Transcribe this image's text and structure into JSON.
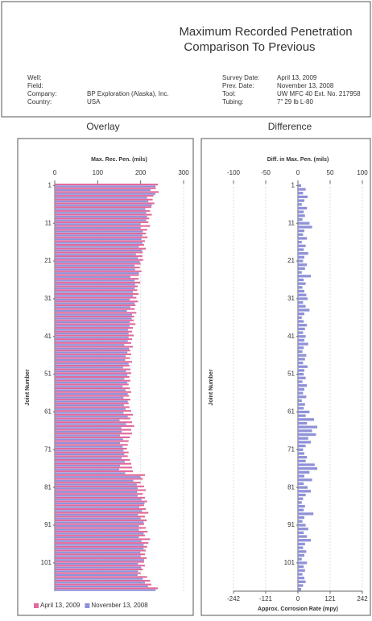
{
  "header": {
    "title": "Maximum Recorded Penetration",
    "subtitle": "Comparison To Previous",
    "fields_left": [
      [
        "Well:",
        ""
      ],
      [
        "Field:",
        ""
      ],
      [
        "Company:",
        "BP Exploration (Alaska), Inc."
      ],
      [
        "Country:",
        "USA"
      ]
    ],
    "fields_right": [
      [
        "Survey Date:",
        "April 13, 2009"
      ],
      [
        "Prev. Date:",
        "November 13, 2008"
      ],
      [
        "Tool:",
        "UW MFC 40 Ext. No. 217958"
      ],
      [
        "Tubing:",
        "7”  29 lb  L-80"
      ]
    ]
  },
  "chart_data": [
    {
      "type": "bar",
      "title": "Overlay",
      "x_label": "Max. Rec. Pen. (mils)",
      "y_label": "Joint Number",
      "xlim": [
        0,
        300
      ],
      "xticks": [
        0,
        100,
        200,
        300
      ],
      "grid": true,
      "legend": "bottom",
      "categories": [
        "1",
        null,
        null,
        null,
        null,
        null,
        null,
        null,
        null,
        null,
        "11",
        null,
        null,
        null,
        null,
        null,
        null,
        null,
        null,
        null,
        "21",
        null,
        null,
        null,
        null,
        null,
        null,
        null,
        null,
        null,
        "31",
        null,
        null,
        null,
        null,
        null,
        null,
        null,
        null,
        null,
        "41",
        null,
        null,
        null,
        null,
        null,
        null,
        null,
        null,
        null,
        "51",
        null,
        null,
        null,
        null,
        null,
        null,
        null,
        null,
        null,
        "61",
        null,
        null,
        null,
        null,
        null,
        null,
        null,
        null,
        null,
        "71",
        null,
        null,
        null,
        null,
        null,
        null,
        null,
        null,
        null,
        "81",
        null,
        null,
        null,
        null,
        null,
        null,
        null,
        null,
        null,
        "91",
        null,
        null,
        null,
        null,
        null,
        null,
        null,
        null,
        null,
        "101",
        null,
        null,
        null,
        null,
        null,
        null,
        null
      ],
      "series": [
        {
          "name": "April 13, 2009",
          "color": "#e2699c",
          "values": [
            240,
            235,
            242,
            230,
            228,
            232,
            225,
            222,
            226,
            220,
            218,
            222,
            215,
            212,
            216,
            210,
            208,
            212,
            205,
            204,
            206,
            200,
            198,
            202,
            196,
            195,
            199,
            193,
            192,
            195,
            190,
            194,
            188,
            186,
            190,
            185,
            184,
            188,
            182,
            180,
            184,
            180,
            178,
            182,
            176,
            178,
            175,
            180,
            174,
            176,
            178,
            174,
            176,
            172,
            175,
            178,
            173,
            176,
            172,
            174,
            178,
            182,
            176,
            180,
            185,
            178,
            180,
            175,
            172,
            170,
            168,
            172,
            170,
            175,
            178,
            180,
            182,
            210,
            205,
            200,
            208,
            212,
            205,
            210,
            215,
            208,
            212,
            218,
            210,
            214,
            208,
            212,
            216,
            210,
            222,
            218,
            215,
            212,
            210,
            214,
            208,
            210,
            205,
            200,
            215,
            222,
            225,
            240
          ]
        },
        {
          "name": "November 13, 2008",
          "color": "#8f92d8",
          "values": [
            235,
            223,
            234,
            215,
            218,
            226,
            211,
            213,
            215,
            213,
            200,
            200,
            205,
            204,
            202,
            204,
            196,
            203,
            189,
            194,
            198,
            186,
            187,
            196,
            176,
            186,
            187,
            186,
            182,
            182,
            175,
            186,
            176,
            168,
            180,
            179,
            175,
            174,
            171,
            172,
            172,
            170,
            162,
            173,
            169,
            165,
            164,
            172,
            159,
            166,
            169,
            162,
            169,
            158,
            165,
            170,
            160,
            170,
            161,
            165,
            160,
            170,
            151,
            166,
            155,
            156,
            152,
            159,
            152,
            158,
            160,
            162,
            156,
            163,
            152,
            150,
            164,
            200,
            183,
            191,
            193,
            192,
            193,
            202,
            209,
            197,
            203,
            194,
            200,
            207,
            196,
            196,
            207,
            196,
            202,
            207,
            207,
            199,
            200,
            208,
            194,
            201,
            194,
            193,
            205,
            210,
            217,
            235
          ]
        }
      ]
    },
    {
      "type": "diverging-bar",
      "title": "Difference",
      "x_label": "Diff. in Max. Pen. (mils)",
      "y_label": "Joint Number",
      "x2_label": "Approx. Corrosion Rate (mpy)",
      "xlim": [
        -100,
        100
      ],
      "xticks": [
        -100,
        -50,
        0,
        50,
        100
      ],
      "x2lim": [
        -242,
        242
      ],
      "x2ticks": [
        -242,
        -121,
        0,
        121,
        242
      ],
      "grid": true,
      "categories": [
        "1",
        null,
        null,
        null,
        null,
        null,
        null,
        null,
        null,
        null,
        "11",
        null,
        null,
        null,
        null,
        null,
        null,
        null,
        null,
        null,
        "21",
        null,
        null,
        null,
        null,
        null,
        null,
        null,
        null,
        null,
        "31",
        null,
        null,
        null,
        null,
        null,
        null,
        null,
        null,
        null,
        "41",
        null,
        null,
        null,
        null,
        null,
        null,
        null,
        null,
        null,
        "51",
        null,
        null,
        null,
        null,
        null,
        null,
        null,
        null,
        null,
        "61",
        null,
        null,
        null,
        null,
        null,
        null,
        null,
        null,
        null,
        "71",
        null,
        null,
        null,
        null,
        null,
        null,
        null,
        null,
        null,
        "81",
        null,
        null,
        null,
        null,
        null,
        null,
        null,
        null,
        null,
        "91",
        null,
        null,
        null,
        null,
        null,
        null,
        null,
        null,
        null,
        "101",
        null,
        null,
        null,
        null,
        null,
        null,
        null
      ],
      "color": "#8f92d8",
      "values": [
        5,
        12,
        8,
        15,
        10,
        6,
        14,
        9,
        11,
        7,
        18,
        22,
        10,
        8,
        14,
        6,
        12,
        9,
        16,
        10,
        8,
        14,
        11,
        6,
        20,
        9,
        12,
        7,
        10,
        13,
        15,
        8,
        12,
        18,
        10,
        6,
        9,
        14,
        11,
        8,
        12,
        10,
        16,
        9,
        7,
        13,
        11,
        8,
        15,
        10,
        9,
        12,
        7,
        14,
        10,
        8,
        13,
        6,
        11,
        9,
        18,
        12,
        25,
        14,
        30,
        22,
        28,
        16,
        20,
        12,
        8,
        10,
        14,
        12,
        26,
        30,
        18,
        10,
        22,
        9,
        15,
        20,
        12,
        8,
        6,
        11,
        9,
        24,
        10,
        7,
        12,
        16,
        9,
        14,
        20,
        11,
        8,
        13,
        10,
        6,
        14,
        9,
        11,
        7,
        10,
        12,
        8,
        5
      ]
    }
  ]
}
